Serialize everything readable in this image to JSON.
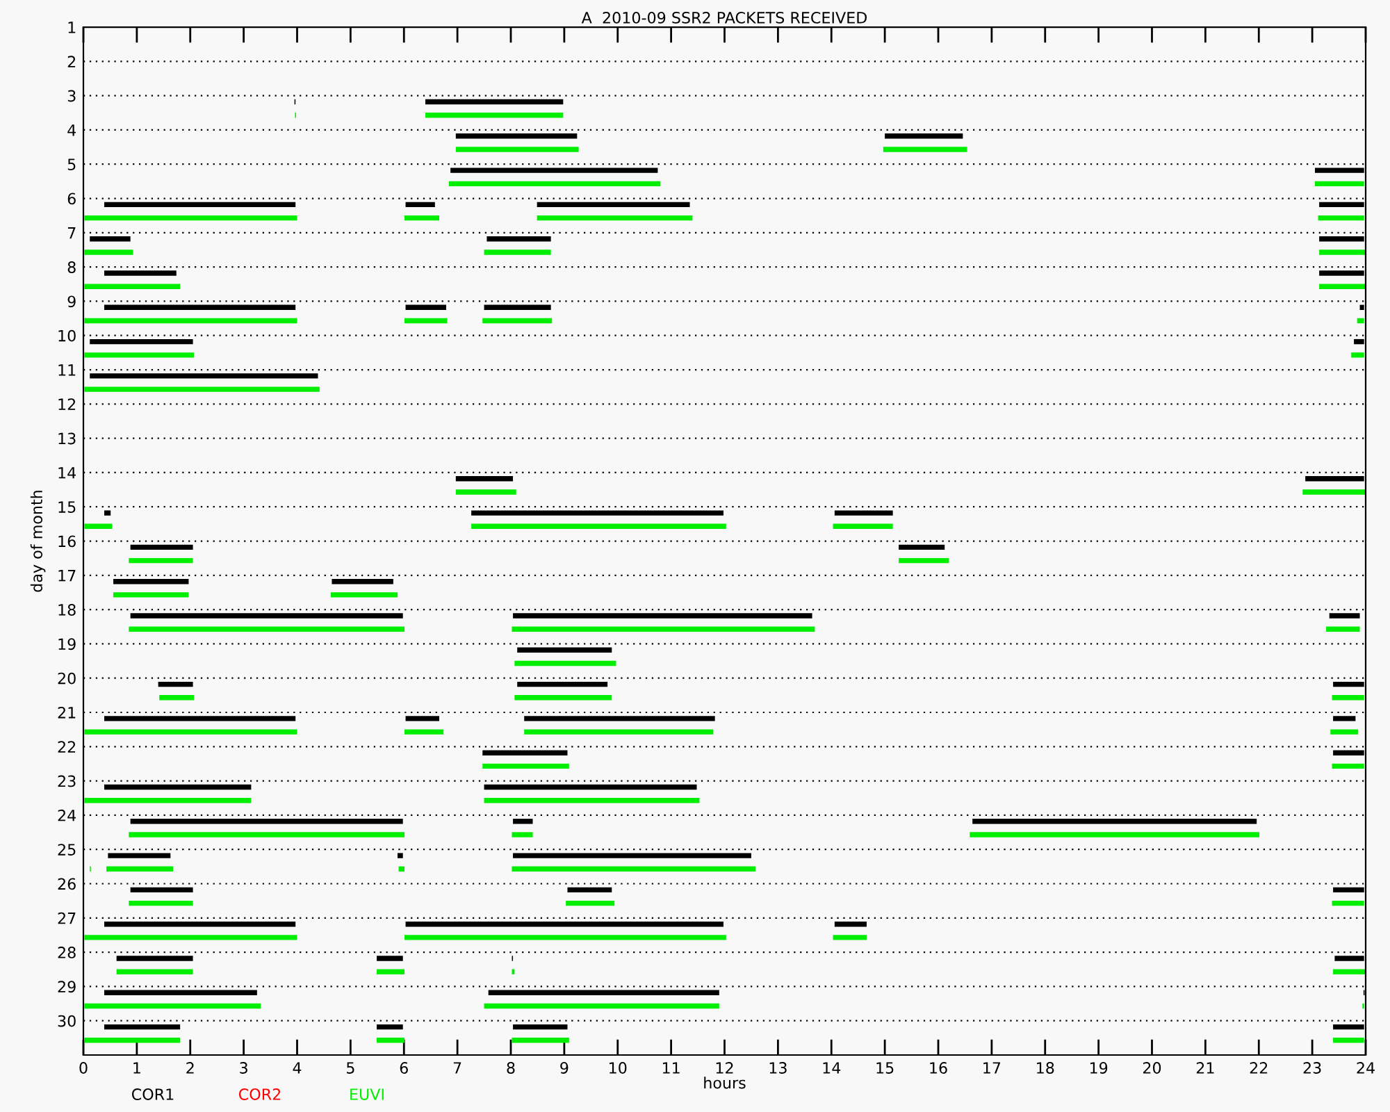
{
  "chart_data": {
    "type": "bar",
    "orientation": "horizontal",
    "title": "A  2010-09 SSR2 PACKETS RECEIVED",
    "xlabel": "hours",
    "ylabel": "day of month",
    "categories": [
      "1",
      "2",
      "3",
      "4",
      "5",
      "6",
      "7",
      "8",
      "9",
      "10",
      "11",
      "12",
      "13",
      "14",
      "15",
      "16",
      "17",
      "18",
      "19",
      "20",
      "21",
      "22",
      "23",
      "24",
      "25",
      "26",
      "27",
      "28",
      "29",
      "30"
    ],
    "xlim": [
      0,
      24
    ],
    "xticks": [
      0,
      1,
      2,
      3,
      4,
      5,
      6,
      7,
      8,
      9,
      10,
      11,
      12,
      13,
      14,
      15,
      16,
      17,
      18,
      19,
      20,
      21,
      22,
      23,
      24
    ],
    "grid": "y",
    "legend": "bottom",
    "series": [
      {
        "name": "COR1",
        "color": "#000000",
        "base": [
          null,
          null,
          3.95,
          6.97,
          6.87,
          0.39,
          0.12,
          0.39,
          0.39,
          0.12,
          0.12,
          null,
          null,
          6.97,
          0.39,
          0.88,
          0.56,
          0.88,
          8.12,
          1.4,
          0.39,
          7.47,
          0.39,
          0.88,
          0.46,
          0.88,
          0.39,
          0.62,
          0.39,
          0.39
        ],
        "values": [
          null,
          null,
          0.02,
          2.27,
          3.88,
          3.58,
          0.76,
          1.35,
          3.58,
          1.93,
          4.27,
          null,
          null,
          1.07,
          0.12,
          1.17,
          1.41,
          5.1,
          1.77,
          0.65,
          3.58,
          1.59,
          2.75,
          5.1,
          1.17,
          1.17,
          3.58,
          1.43,
          2.86,
          1.42
        ]
      },
      {
        "color": "#000000",
        "base": [
          null,
          null,
          6.4,
          15.0,
          23.05,
          6.03,
          7.55,
          23.13,
          6.03,
          23.78,
          null,
          null,
          null,
          22.87,
          7.26,
          15.26,
          4.65,
          8.04,
          null,
          8.12,
          6.03,
          23.39,
          7.5,
          8.04,
          5.88,
          9.06,
          6.03,
          5.49,
          7.58,
          5.49
        ],
        "values": [
          null,
          null,
          2.58,
          1.46,
          0.92,
          0.55,
          1.2,
          0.84,
          0.76,
          0.19,
          null,
          null,
          null,
          1.1,
          4.72,
          0.86,
          1.15,
          5.6,
          null,
          1.69,
          0.63,
          0.58,
          3.98,
          0.37,
          0.1,
          0.83,
          5.95,
          0.49,
          4.32,
          0.49
        ]
      },
      {
        "color": "#000000",
        "base": [
          null,
          null,
          null,
          null,
          null,
          8.49,
          23.13,
          null,
          7.5,
          null,
          null,
          null,
          null,
          null,
          14.06,
          null,
          null,
          23.32,
          null,
          23.39,
          8.25,
          null,
          null,
          16.64,
          8.04,
          23.39,
          14.06,
          8.02,
          23.96,
          8.04
        ],
        "values": [
          null,
          null,
          null,
          null,
          null,
          2.86,
          0.84,
          null,
          1.25,
          null,
          null,
          null,
          null,
          null,
          1.09,
          null,
          null,
          0.57,
          null,
          0.58,
          3.57,
          null,
          null,
          5.32,
          4.46,
          0.58,
          0.6,
          0.02,
          0.02,
          1.02
        ]
      },
      {
        "color": "#000000",
        "base": [
          null,
          null,
          null,
          null,
          null,
          23.13,
          null,
          null,
          23.89,
          null,
          null,
          null,
          null,
          null,
          null,
          null,
          null,
          null,
          null,
          null,
          23.39,
          null,
          null,
          null,
          null,
          null,
          null,
          23.42,
          null,
          23.39
        ],
        "values": [
          null,
          null,
          null,
          null,
          null,
          0.84,
          null,
          null,
          0.08,
          null,
          null,
          null,
          null,
          null,
          null,
          null,
          null,
          null,
          null,
          null,
          0.42,
          null,
          null,
          null,
          null,
          null,
          null,
          0.55,
          null,
          0.58
        ]
      },
      {
        "name": "COR2",
        "color": "#ff0000",
        "base": [
          null,
          null,
          null,
          null,
          null,
          null,
          null,
          null,
          null,
          null,
          null,
          null,
          null,
          null,
          null,
          null,
          null,
          null,
          null,
          null,
          null,
          null,
          null,
          null,
          null,
          null,
          null,
          null,
          null,
          null
        ],
        "values": [
          null,
          null,
          null,
          null,
          null,
          null,
          null,
          null,
          null,
          null,
          null,
          null,
          null,
          null,
          null,
          null,
          null,
          null,
          null,
          null,
          null,
          null,
          null,
          null,
          null,
          null,
          null,
          null,
          null,
          null
        ]
      },
      {
        "name": "EUVI",
        "color": "#00ee00",
        "base": [
          null,
          null,
          3.96,
          6.97,
          6.84,
          0.02,
          0.02,
          0.02,
          0.02,
          0.02,
          0.02,
          null,
          null,
          6.97,
          0.02,
          0.85,
          0.56,
          0.85,
          8.07,
          1.42,
          0.02,
          7.47,
          0.02,
          0.85,
          0.12,
          0.85,
          0.02,
          0.62,
          0.02,
          0.02
        ],
        "values": [
          null,
          null,
          0.02,
          2.3,
          3.96,
          3.98,
          0.91,
          1.79,
          3.98,
          2.05,
          4.4,
          null,
          null,
          1.13,
          0.52,
          1.2,
          1.41,
          5.16,
          1.9,
          0.65,
          3.98,
          1.62,
          3.12,
          5.16,
          0.02,
          1.2,
          3.98,
          1.43,
          3.3,
          1.79
        ]
      },
      {
        "color": "#00ee00",
        "base": [
          null,
          null,
          6.4,
          14.97,
          23.05,
          6.01,
          7.5,
          23.13,
          6.01,
          23.73,
          null,
          null,
          null,
          22.82,
          7.26,
          15.26,
          4.63,
          8.02,
          null,
          8.07,
          6.01,
          23.37,
          7.5,
          8.02,
          0.43,
          9.03,
          6.01,
          5.49,
          7.5,
          5.49
        ],
        "values": [
          null,
          null,
          2.58,
          1.57,
          0.92,
          0.65,
          1.25,
          0.87,
          0.8,
          0.24,
          null,
          null,
          null,
          1.18,
          4.77,
          0.94,
          1.25,
          5.67,
          null,
          1.82,
          0.73,
          0.6,
          4.03,
          0.39,
          1.25,
          0.91,
          6.02,
          0.52,
          4.4,
          0.52
        ]
      },
      {
        "color": "#00ee00",
        "base": [
          null,
          null,
          null,
          null,
          null,
          8.49,
          23.13,
          null,
          7.47,
          null,
          null,
          null,
          null,
          null,
          14.03,
          null,
          null,
          23.26,
          null,
          23.37,
          8.25,
          null,
          null,
          16.59,
          5.9,
          23.37,
          14.03,
          8.02,
          23.94,
          8.02
        ],
        "values": [
          null,
          null,
          null,
          null,
          null,
          2.91,
          0.87,
          null,
          1.3,
          null,
          null,
          null,
          null,
          null,
          1.12,
          null,
          null,
          0.63,
          null,
          0.6,
          3.54,
          null,
          null,
          5.42,
          0.11,
          0.6,
          0.63,
          0.05,
          0.03,
          1.07
        ]
      },
      {
        "color": "#00ee00",
        "base": [
          null,
          null,
          null,
          null,
          null,
          23.11,
          null,
          null,
          23.84,
          null,
          null,
          null,
          null,
          null,
          null,
          null,
          null,
          null,
          null,
          null,
          23.34,
          null,
          null,
          null,
          8.02,
          null,
          null,
          23.39,
          null,
          23.39
        ],
        "values": [
          null,
          null,
          null,
          null,
          null,
          0.86,
          null,
          null,
          0.13,
          null,
          null,
          null,
          null,
          null,
          null,
          null,
          null,
          null,
          null,
          null,
          0.52,
          null,
          null,
          null,
          4.56,
          null,
          null,
          0.61,
          null,
          0.58
        ]
      }
    ]
  }
}
